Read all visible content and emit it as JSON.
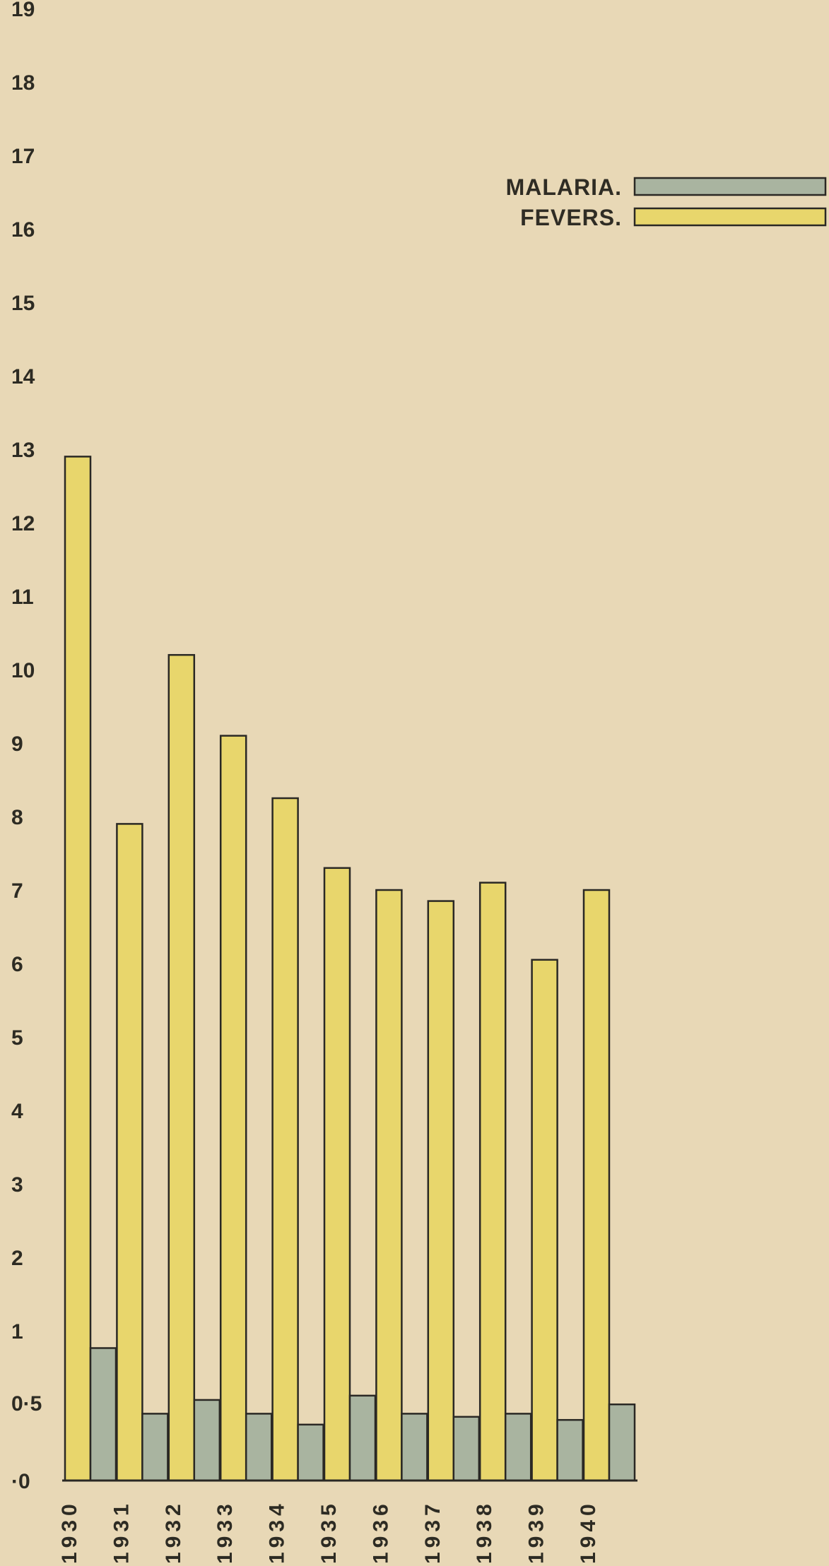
{
  "chart_data": {
    "type": "bar",
    "categories": [
      "1930",
      "1931",
      "1932",
      "1933",
      "1934",
      "1935",
      "1936",
      "1937",
      "1938",
      "1939",
      "1940"
    ],
    "series": [
      {
        "name": "FEVERS.",
        "values": [
          12.9,
          7.9,
          10.2,
          9.1,
          8.25,
          7.3,
          7.0,
          6.85,
          7.1,
          6.05,
          7.0
        ],
        "color": "#e8d66c"
      },
      {
        "name": "MALARIA.",
        "values": [
          0.88,
          0.43,
          0.52,
          0.43,
          0.36,
          0.55,
          0.43,
          0.41,
          0.43,
          0.39,
          0.49
        ],
        "color": "#a9b4a0"
      }
    ],
    "y_tick_labels": [
      "·0",
      "0·5",
      "1",
      "2",
      "3",
      "4",
      "5",
      "6",
      "7",
      "8",
      "9",
      "10",
      "11",
      "12",
      "13",
      "14",
      "15",
      "16",
      "17",
      "18",
      "19"
    ],
    "y_tick_values": [
      0,
      0.5,
      1,
      2,
      3,
      4,
      5,
      6,
      7,
      8,
      9,
      10,
      11,
      12,
      13,
      14,
      15,
      16,
      17,
      18,
      19
    ],
    "title": "",
    "xlabel": "",
    "ylabel": "",
    "ylim": [
      0,
      19
    ],
    "legend": "top-right",
    "grid": false,
    "colors": {
      "background": "#e8d8b6",
      "outline": "#2a2824"
    }
  }
}
